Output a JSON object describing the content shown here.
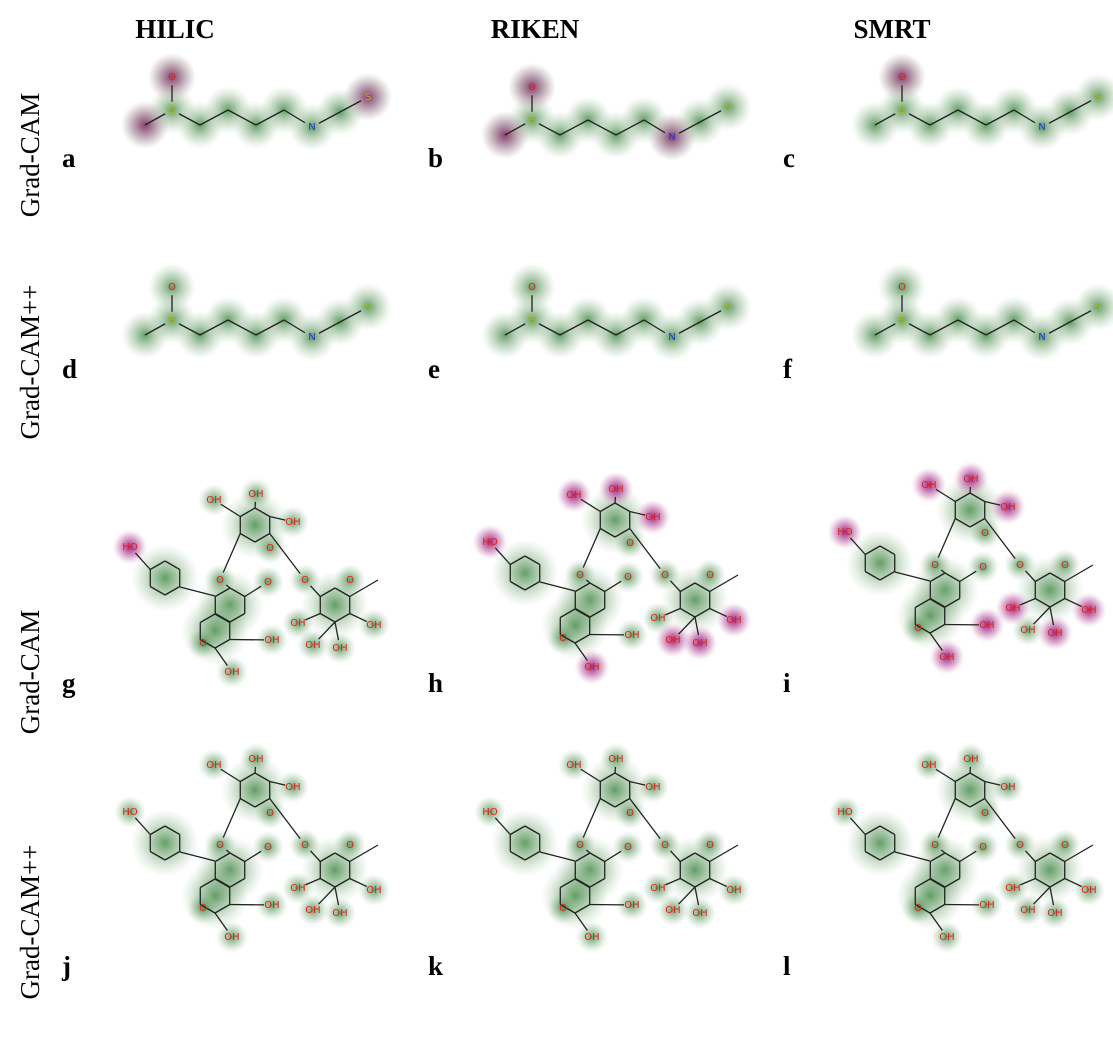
{
  "columns": [
    "HILIC",
    "RIKEN",
    "SMRT"
  ],
  "rows": [
    "Grad-CAM",
    "Grad-CAM++",
    "Grad-CAM",
    "Grad-CAM++"
  ],
  "panels": [
    "a",
    "b",
    "c",
    "d",
    "e",
    "f",
    "g",
    "h",
    "i",
    "j",
    "k",
    "l"
  ],
  "molecules": [
    {
      "atoms": [
        "O",
        "S",
        "N",
        "S"
      ]
    },
    {
      "atoms": [
        "HO",
        "O",
        "O",
        "OH",
        "OH",
        "O",
        "OH",
        "OH",
        "OH",
        "O",
        "O",
        "O",
        "OH",
        "OH",
        "OH",
        "OH"
      ]
    }
  ]
}
